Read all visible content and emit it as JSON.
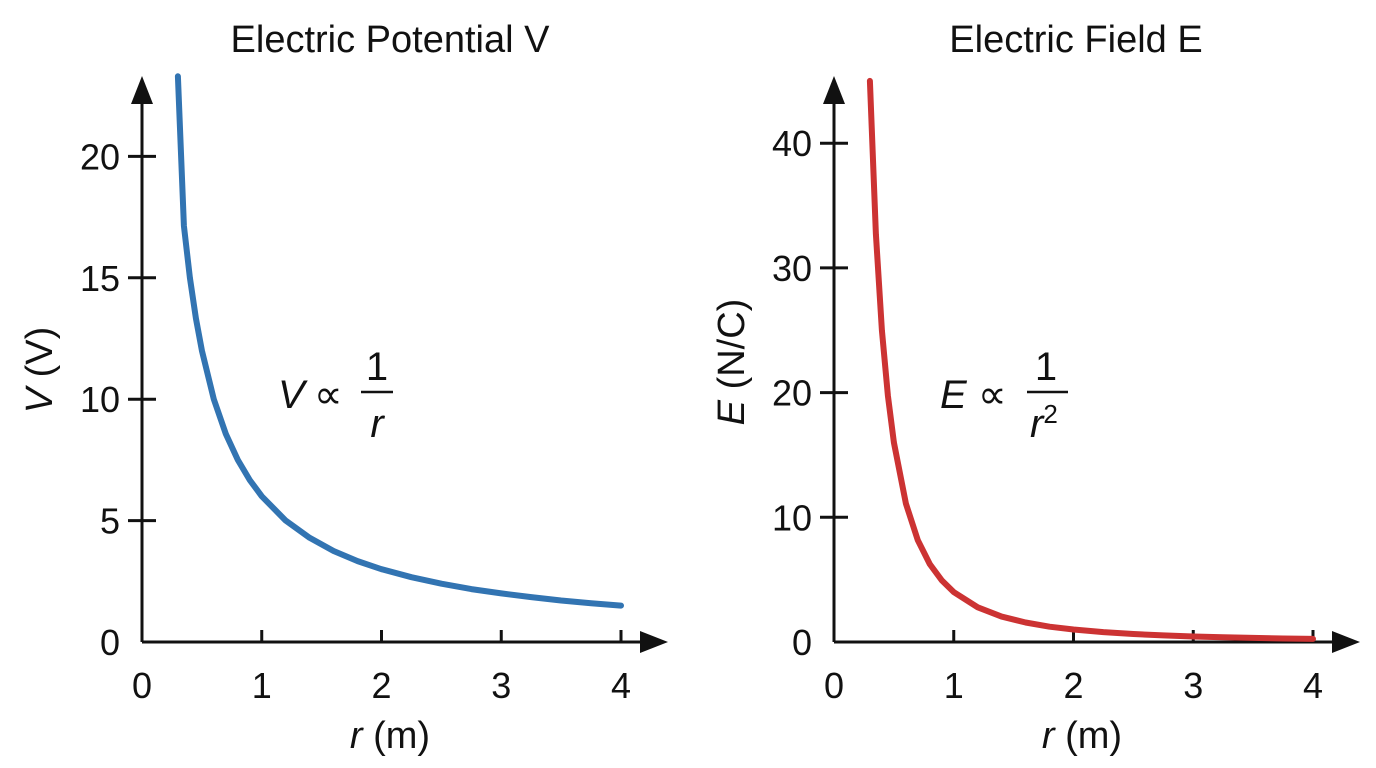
{
  "chart_data": [
    {
      "type": "line",
      "title": "Electric Potential V",
      "xlabel_var": "r",
      "xlabel_unit": " (m)",
      "ylabel_var": "V",
      "ylabel_unit": " (V)",
      "xlim": [
        0,
        4
      ],
      "ylim": [
        0,
        23
      ],
      "xticks": [
        0,
        1,
        2,
        3,
        4
      ],
      "yticks": [
        0,
        5,
        10,
        15,
        20
      ],
      "grid": false,
      "color": "#3274b2",
      "annotation": {
        "lhs": "V",
        "symbol": "∝",
        "numerator": "1",
        "denominator_var": "r",
        "denominator_exp": ""
      },
      "series": [
        {
          "x": [
            0.3,
            0.35,
            0.4,
            0.45,
            0.5,
            0.6,
            0.7,
            0.8,
            0.9,
            1.0,
            1.2,
            1.4,
            1.6,
            1.8,
            2.0,
            2.25,
            2.5,
            2.75,
            3.0,
            3.25,
            3.5,
            3.75,
            4.0
          ],
          "y": [
            23.3,
            17.14,
            15.0,
            13.33,
            12.0,
            10.0,
            8.57,
            7.5,
            6.67,
            6.0,
            5.0,
            4.29,
            3.75,
            3.33,
            3.0,
            2.67,
            2.4,
            2.18,
            2.0,
            1.85,
            1.71,
            1.6,
            1.5
          ]
        }
      ]
    },
    {
      "type": "line",
      "title": "Electric Field E",
      "xlabel_var": "r",
      "xlabel_unit": " (m)",
      "ylabel_var": "E",
      "ylabel_unit": " (N/C)",
      "xlim": [
        0,
        4
      ],
      "ylim": [
        0,
        45
      ],
      "xticks": [
        0,
        1,
        2,
        3,
        4
      ],
      "yticks": [
        0,
        10,
        20,
        30,
        40
      ],
      "grid": false,
      "color": "#cc3333",
      "annotation": {
        "lhs": "E",
        "symbol": "∝",
        "numerator": "1",
        "denominator_var": "r",
        "denominator_exp": "2"
      },
      "series": [
        {
          "x": [
            0.3,
            0.35,
            0.4,
            0.45,
            0.5,
            0.6,
            0.7,
            0.8,
            0.9,
            1.0,
            1.2,
            1.4,
            1.6,
            1.8,
            2.0,
            2.25,
            2.5,
            2.75,
            3.0,
            3.25,
            3.5,
            3.75,
            4.0
          ],
          "y": [
            45.0,
            32.7,
            25.0,
            19.75,
            16.0,
            11.1,
            8.16,
            6.25,
            4.94,
            4.0,
            2.78,
            2.04,
            1.56,
            1.23,
            1.0,
            0.79,
            0.64,
            0.53,
            0.44,
            0.38,
            0.33,
            0.28,
            0.25
          ]
        }
      ]
    }
  ]
}
